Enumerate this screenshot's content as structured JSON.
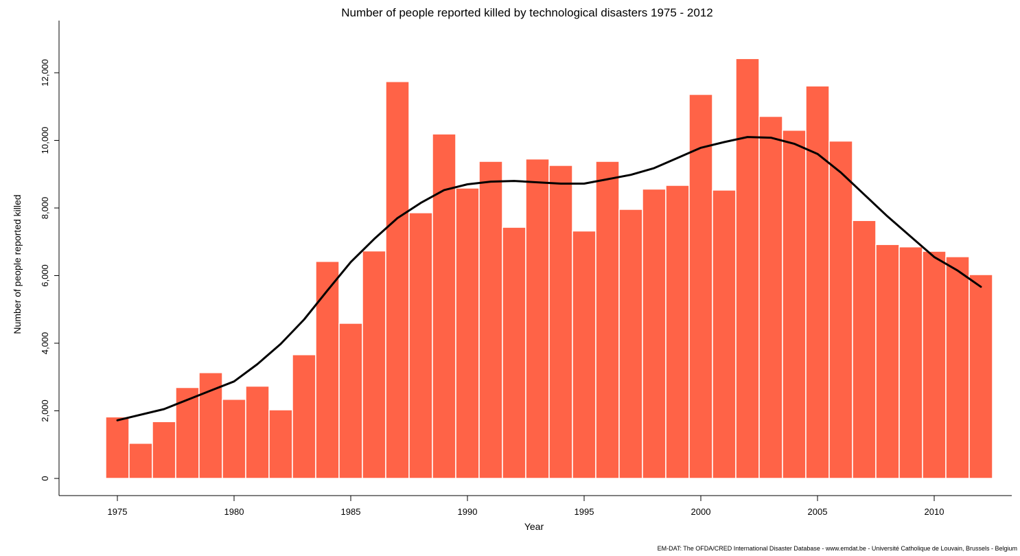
{
  "chart_data": {
    "type": "bar",
    "title": "Number of people reported killed by technological disasters 1975 - 2012",
    "xlabel": "Year",
    "ylabel": "Number of people reported killed",
    "x": [
      1975,
      1976,
      1977,
      1978,
      1979,
      1980,
      1981,
      1982,
      1983,
      1984,
      1985,
      1986,
      1987,
      1988,
      1989,
      1990,
      1991,
      1992,
      1993,
      1994,
      1995,
      1996,
      1997,
      1998,
      1999,
      2000,
      2001,
      2002,
      2003,
      2004,
      2005,
      2006,
      2007,
      2008,
      2009,
      2010,
      2011,
      2012
    ],
    "values": [
      1820,
      1040,
      1680,
      2690,
      3130,
      2340,
      2730,
      2030,
      3660,
      6420,
      4590,
      6730,
      11740,
      7860,
      10190,
      8590,
      9380,
      7430,
      9450,
      9260,
      7320,
      9380,
      7960,
      8560,
      8670,
      11360,
      8530,
      12420,
      10710,
      10300,
      11610,
      9980,
      7630,
      6920,
      6850,
      6720,
      6560,
      6030
    ],
    "trend": {
      "name": "",
      "x": [
        1975,
        1977,
        1979,
        1980,
        1981,
        1982,
        1983,
        1984,
        1985,
        1986,
        1987,
        1988,
        1989,
        1990,
        1991,
        1992,
        1993,
        1994,
        1995,
        1996,
        1997,
        1998,
        1999,
        2000,
        2001,
        2002,
        2003,
        2004,
        2005,
        2006,
        2007,
        2008,
        2009,
        2010,
        2011,
        2012
      ],
      "values": [
        1720,
        2050,
        2600,
        2870,
        3380,
        3980,
        4700,
        5560,
        6400,
        7080,
        7700,
        8150,
        8530,
        8700,
        8780,
        8800,
        8760,
        8720,
        8720,
        8850,
        8980,
        9180,
        9480,
        9780,
        9950,
        10100,
        10080,
        9900,
        9600,
        9050,
        8400,
        7750,
        7150,
        6550,
        6150,
        5670
      ]
    },
    "x_ticks": [
      "1975",
      "1980",
      "1985",
      "1990",
      "1995",
      "2000",
      "2005",
      "2010"
    ],
    "y_ticks": [
      "0",
      "2,000",
      "4,000",
      "6,000",
      "8,000",
      "10,000",
      "12,000"
    ],
    "ylim": [
      0,
      13000
    ],
    "xlim": [
      1974.5,
      2012.5
    ],
    "bar_color": "#ff6347",
    "trend_color": "#000000",
    "grid": false,
    "legend": "none"
  },
  "source_note": "EM-DAT: The OFDA/CRED International Disaster Database - www.emdat.be - Université Catholique  de Louvain, Brussels - Belgium"
}
